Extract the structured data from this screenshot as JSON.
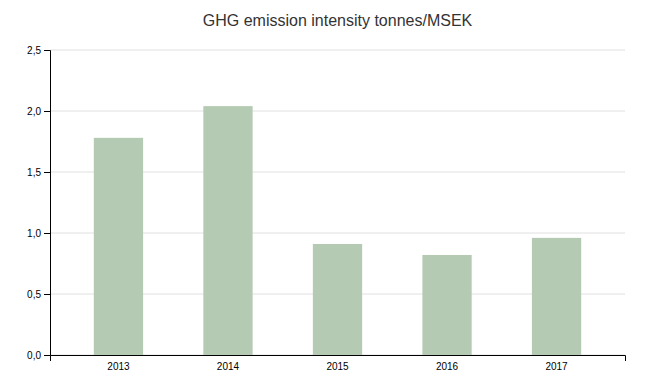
{
  "chart_data": {
    "type": "bar",
    "title": "GHG emission intensity tonnes/MSEK",
    "categories": [
      "2013",
      "2014",
      "2015",
      "2016",
      "2017"
    ],
    "values": [
      1.78,
      2.04,
      0.91,
      0.82,
      0.96
    ],
    "color": "#b5cab3",
    "ylim": [
      0,
      2.5
    ],
    "yticks": [
      {
        "value": 0.0,
        "label": "0,0"
      },
      {
        "value": 0.5,
        "label": "0,5"
      },
      {
        "value": 1.0,
        "label": "1,0"
      },
      {
        "value": 1.5,
        "label": "1,5"
      },
      {
        "value": 2.0,
        "label": "2,0"
      },
      {
        "value": 2.5,
        "label": "2,5"
      }
    ],
    "grid": true
  }
}
